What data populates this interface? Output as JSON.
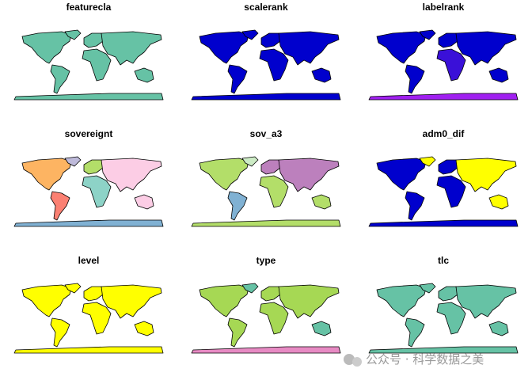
{
  "panels": [
    {
      "title": "featurecla",
      "colors": {
        "north_america": "#66c2a5",
        "greenland": "#66c2a5",
        "south_america": "#66c2a5",
        "europe": "#66c2a5",
        "africa": "#66c2a5",
        "asia": "#66c2a5",
        "australia": "#66c2a5",
        "antarctica": "#66c2a5"
      }
    },
    {
      "title": "scalerank",
      "colors": {
        "north_america": "#0000cd",
        "greenland": "#0000cd",
        "south_america": "#0000cd",
        "europe": "#0000cd",
        "africa": "#0000cd",
        "asia": "#0000cd",
        "australia": "#0000cd",
        "antarctica": "#0000cd"
      }
    },
    {
      "title": "labelrank",
      "colors": {
        "north_america": "#0000cd",
        "greenland": "#0000cd",
        "south_america": "#0000cd",
        "europe": "#0000cd",
        "africa": "#3a10d8",
        "asia": "#0000cd",
        "australia": "#0000cd",
        "antarctica": "#a020f0"
      }
    },
    {
      "title": "sovereignt",
      "colors": {
        "north_america": "#fdb462",
        "greenland": "#bebada",
        "south_america": "#fb8072",
        "europe": "#b3de69",
        "africa": "#8dd3c7",
        "asia": "#fccde5",
        "australia": "#fccde5",
        "antarctica": "#80b1d3"
      }
    },
    {
      "title": "sov_a3",
      "colors": {
        "north_america": "#b3de69",
        "greenland": "#ccebc5",
        "south_america": "#80b1d3",
        "europe": "#bc80bd",
        "africa": "#b3de69",
        "asia": "#bc80bd",
        "australia": "#b3de69",
        "antarctica": "#b3de69"
      }
    },
    {
      "title": "adm0_dif",
      "colors": {
        "north_america": "#0000cd",
        "greenland": "#ffff00",
        "south_america": "#0000cd",
        "europe": "#0000cd",
        "africa": "#0000cd",
        "asia": "#ffff00",
        "australia": "#ffff00",
        "antarctica": "#0000cd"
      }
    },
    {
      "title": "level",
      "colors": {
        "north_america": "#ffff00",
        "greenland": "#ffff00",
        "south_america": "#ffff00",
        "europe": "#ffff00",
        "africa": "#ffff00",
        "asia": "#ffff00",
        "australia": "#ffff00",
        "antarctica": "#ffff00"
      }
    },
    {
      "title": "type",
      "colors": {
        "north_america": "#a6d854",
        "greenland": "#66c2a5",
        "south_america": "#a6d854",
        "europe": "#a6d854",
        "africa": "#a6d854",
        "asia": "#a6d854",
        "australia": "#66c2a5",
        "antarctica": "#e78ac3"
      }
    },
    {
      "title": "tlc",
      "colors": {
        "north_america": "#66c2a5",
        "greenland": "#66c2a5",
        "south_america": "#66c2a5",
        "europe": "#66c2a5",
        "africa": "#66c2a5",
        "asia": "#66c2a5",
        "australia": "#66c2a5",
        "antarctica": "#66c2a5"
      }
    }
  ],
  "watermark": "公众号 · 科学数据之美"
}
